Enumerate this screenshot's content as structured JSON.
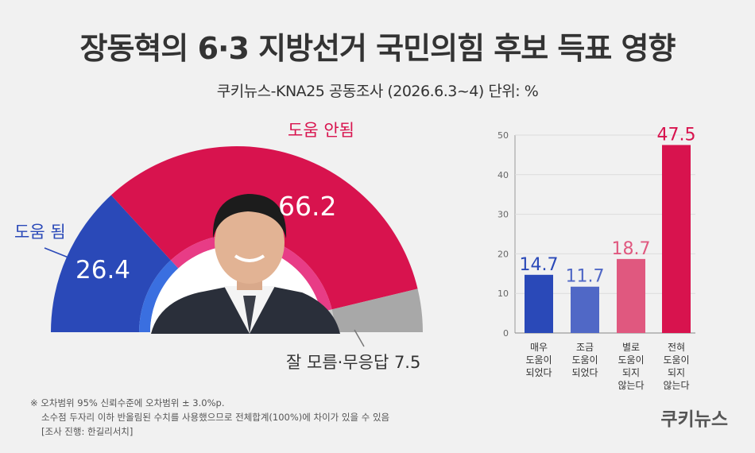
{
  "header": {
    "title": "장동혁의 6·3 지방선거 국민의힘 후보 득표 영향",
    "subtitle": "쿠키뉴스-KNA25 공동조사 (2026.6.3~4) 단위: %"
  },
  "chart_data": [
    {
      "type": "pie",
      "style": "half-donut",
      "slices": [
        {
          "label": "도움 됨",
          "value": 26.4,
          "color": "#2a49b8"
        },
        {
          "label": "도움 안됨",
          "value": 66.2,
          "color": "#d8134e"
        },
        {
          "label": "잘 모름·무응답",
          "value": 7.5,
          "color": "#a8a8a8"
        }
      ]
    },
    {
      "type": "bar",
      "categories": [
        "매우 도움이 되었다",
        "조금 도움이 되었다",
        "별로 도움이 되지 않는다",
        "전혀 도움이 되지 않는다"
      ],
      "category_lines": [
        [
          "매우",
          "도움이",
          "되었다"
        ],
        [
          "조금",
          "도움이",
          "되었다"
        ],
        [
          "별로",
          "도움이",
          "되지",
          "않는다"
        ],
        [
          "전혀",
          "도움이",
          "되지",
          "않는다"
        ]
      ],
      "values": [
        14.7,
        11.7,
        18.7,
        47.5
      ],
      "colors": [
        "#2a49b8",
        "#5068c6",
        "#e0587f",
        "#d8134e"
      ],
      "ylim": [
        0,
        50
      ],
      "yticks": [
        "0",
        "10",
        "20",
        "30",
        "40",
        "50"
      ]
    }
  ],
  "labels": {
    "help": "도움 됨",
    "help_value": "26.4",
    "nohelp": "도움 안됨",
    "nohelp_value": "66.2",
    "dontknow": "잘 모름·무응답 7.5"
  },
  "footnote": [
    "※ 오차범위 95% 신뢰수준에 오차범위 ± 3.0%p.",
    "소수점 두자리 이하 반올림된 수치를 사용했으므로 전체합계(100%)에 차이가 있을 수 있음",
    "[조사 진행: 한길리서치]"
  ],
  "brand": "쿠키뉴스"
}
